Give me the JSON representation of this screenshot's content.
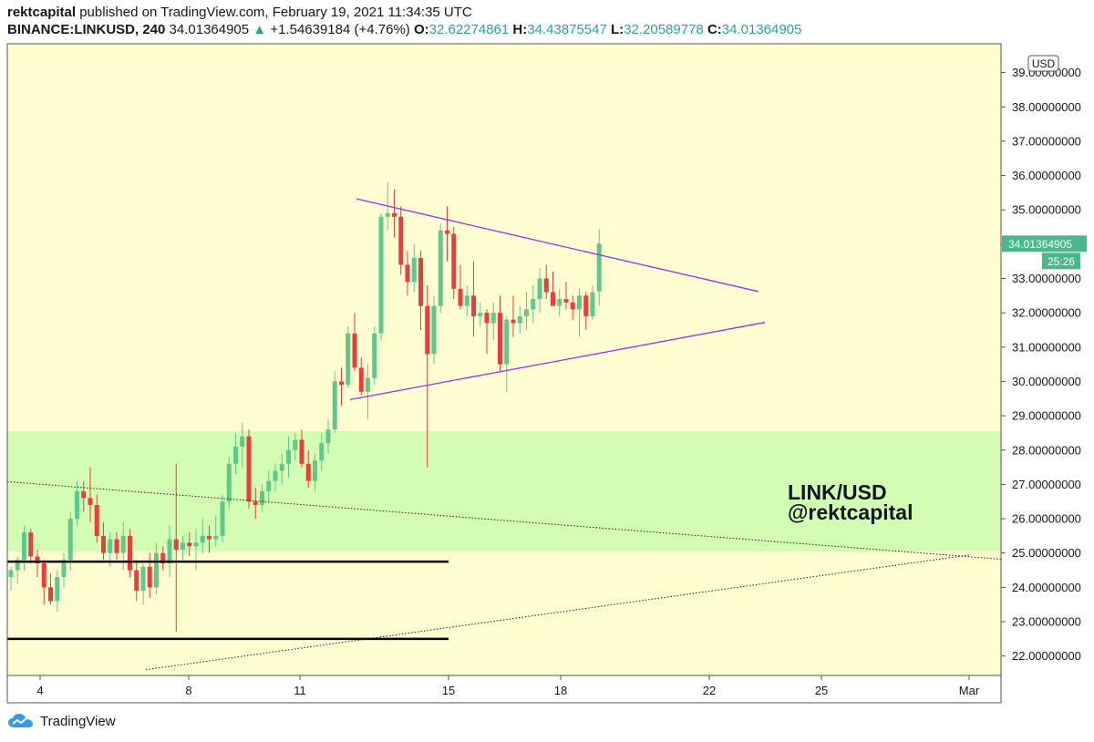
{
  "header": {
    "author": "rektcapital",
    "published_text": "published on TradingView.com, February 19, 2021 11:34:35 UTC",
    "symbol": "BINANCE:LINKUSD, 240",
    "last": "34.01364905",
    "arrow": "▲",
    "change": "+1.54639184 (+4.76%)",
    "o_label": "O:",
    "o_value": "32.62274861",
    "h_label": "H:",
    "h_value": "34.43875547",
    "l_label": "L:",
    "l_value": "32.20589778",
    "c_label": "C:",
    "c_value": "34.01364905"
  },
  "currency_badge": "USD",
  "price_badge": "34.01364905",
  "countdown_badge": "25:26",
  "watermark": {
    "line1": "LINK/USD",
    "line2": "@rektcapital"
  },
  "footer": {
    "brand": "TradingView"
  },
  "colors": {
    "background": "#fffed0",
    "zone": "#d3fdb2",
    "bull": "#5dc98d",
    "bear": "#ef3b3b",
    "triangle": "#9b30ff",
    "badge": "#4cb78a"
  },
  "chart_data": {
    "type": "candlestick",
    "symbol": "BINANCE:LINKUSD",
    "interval": "240",
    "ylim": [
      21.5,
      39.5
    ],
    "y_ticks": [
      "22.00000000",
      "23.00000000",
      "24.00000000",
      "25.00000000",
      "26.00000000",
      "27.00000000",
      "28.00000000",
      "29.00000000",
      "30.00000000",
      "31.00000000",
      "32.00000000",
      "33.00000000",
      "34.00000000",
      "35.00000000",
      "36.00000000",
      "37.00000000",
      "38.00000000",
      "39.00000000"
    ],
    "x_ticks": [
      "4",
      "8",
      "11",
      "15",
      "18",
      "22",
      "25",
      "Mar"
    ],
    "series": [
      {
        "values": [
          [
            24.3,
            24.6,
            23.9,
            24.5
          ],
          [
            24.5,
            24.9,
            24.1,
            24.8
          ],
          [
            24.8,
            25.8,
            24.5,
            25.6
          ],
          [
            25.6,
            25.7,
            24.7,
            24.9
          ],
          [
            24.9,
            25.1,
            24.3,
            24.7
          ],
          [
            24.7,
            24.8,
            23.5,
            24.0
          ],
          [
            24.0,
            24.4,
            23.5,
            23.6
          ],
          [
            23.6,
            24.5,
            23.3,
            24.3
          ],
          [
            24.3,
            25.0,
            24.0,
            24.8
          ],
          [
            24.8,
            26.2,
            24.5,
            26.0
          ],
          [
            26.0,
            27.1,
            25.8,
            26.8
          ],
          [
            26.8,
            27.1,
            26.2,
            26.6
          ],
          [
            26.6,
            27.5,
            25.9,
            26.4
          ],
          [
            26.4,
            26.7,
            25.3,
            25.5
          ],
          [
            25.5,
            25.9,
            24.8,
            25.0
          ],
          [
            25.0,
            25.6,
            24.6,
            25.4
          ],
          [
            25.4,
            25.6,
            24.8,
            25.0
          ],
          [
            25.0,
            25.9,
            24.5,
            25.5
          ],
          [
            25.5,
            25.7,
            24.3,
            24.5
          ],
          [
            24.5,
            24.8,
            23.6,
            23.9
          ],
          [
            23.9,
            24.7,
            23.5,
            24.6
          ],
          [
            24.6,
            25.0,
            23.7,
            24.0
          ],
          [
            24.0,
            25.3,
            23.8,
            25.0
          ],
          [
            25.0,
            25.2,
            24.5,
            24.7
          ],
          [
            24.7,
            25.8,
            24.3,
            25.4
          ],
          [
            25.4,
            27.6,
            22.7,
            25.1
          ],
          [
            25.1,
            25.5,
            24.8,
            25.3
          ],
          [
            25.3,
            25.6,
            24.9,
            25.2
          ],
          [
            25.2,
            25.7,
            24.5,
            25.3
          ],
          [
            25.3,
            26.0,
            25.0,
            25.5
          ],
          [
            25.5,
            25.8,
            25.0,
            25.4
          ],
          [
            25.4,
            26.1,
            25.2,
            25.5
          ],
          [
            25.5,
            26.7,
            25.3,
            26.5
          ],
          [
            26.5,
            27.8,
            26.3,
            27.6
          ],
          [
            27.6,
            28.5,
            27.3,
            28.1
          ],
          [
            28.1,
            28.8,
            27.5,
            28.4
          ],
          [
            28.4,
            28.6,
            26.3,
            26.5
          ],
          [
            26.5,
            26.9,
            26.0,
            26.4
          ],
          [
            26.4,
            27.0,
            26.2,
            26.8
          ],
          [
            26.8,
            27.4,
            26.5,
            27.1
          ],
          [
            27.1,
            27.6,
            26.8,
            27.4
          ],
          [
            27.4,
            27.9,
            27.0,
            27.6
          ],
          [
            27.6,
            28.4,
            27.2,
            28.0
          ],
          [
            28.0,
            28.5,
            27.7,
            28.3
          ],
          [
            28.3,
            28.6,
            27.5,
            27.6
          ],
          [
            27.6,
            28.0,
            26.9,
            27.1
          ],
          [
            27.1,
            27.9,
            26.8,
            27.7
          ],
          [
            27.7,
            28.5,
            27.4,
            28.2
          ],
          [
            28.2,
            28.9,
            27.9,
            28.6
          ],
          [
            28.6,
            30.3,
            28.5,
            30.0
          ],
          [
            30.0,
            30.4,
            29.3,
            29.9
          ],
          [
            29.9,
            31.6,
            29.8,
            31.4
          ],
          [
            31.4,
            32.0,
            30.3,
            30.4
          ],
          [
            30.4,
            30.7,
            29.6,
            29.7
          ],
          [
            29.7,
            30.5,
            28.9,
            30.1
          ],
          [
            30.1,
            31.6,
            29.9,
            31.4
          ],
          [
            31.4,
            34.9,
            31.2,
            34.8
          ],
          [
            34.8,
            35.8,
            34.4,
            34.9
          ],
          [
            34.9,
            35.6,
            34.2,
            34.8
          ],
          [
            34.8,
            35.1,
            33.1,
            33.4
          ],
          [
            33.4,
            33.8,
            32.5,
            32.9
          ],
          [
            32.9,
            34.0,
            32.6,
            33.6
          ],
          [
            33.6,
            33.8,
            31.5,
            32.2
          ],
          [
            32.2,
            32.8,
            27.5,
            30.8
          ],
          [
            30.8,
            32.5,
            30.5,
            32.2
          ],
          [
            32.2,
            34.6,
            32.0,
            34.4
          ],
          [
            34.4,
            35.1,
            33.5,
            34.3
          ],
          [
            34.3,
            34.5,
            32.4,
            32.7
          ],
          [
            32.7,
            33.4,
            32.1,
            32.2
          ],
          [
            32.2,
            32.8,
            31.9,
            32.5
          ],
          [
            32.5,
            33.5,
            31.3,
            31.9
          ],
          [
            31.9,
            32.3,
            31.6,
            32.0
          ],
          [
            32.0,
            32.1,
            30.8,
            31.7
          ],
          [
            31.7,
            32.3,
            31.2,
            32.0
          ],
          [
            32.0,
            32.5,
            30.3,
            30.5
          ],
          [
            30.5,
            31.9,
            29.7,
            31.8
          ],
          [
            31.8,
            32.5,
            31.3,
            31.7
          ],
          [
            31.7,
            32.2,
            31.4,
            31.9
          ],
          [
            31.9,
            32.6,
            31.5,
            32.1
          ],
          [
            32.1,
            32.8,
            31.7,
            32.4
          ],
          [
            32.4,
            33.3,
            32.0,
            33.0
          ],
          [
            33.0,
            33.4,
            32.4,
            32.6
          ],
          [
            32.6,
            33.2,
            32.3,
            32.2
          ],
          [
            32.2,
            32.7,
            31.9,
            32.4
          ],
          [
            32.4,
            32.9,
            32.1,
            32.3
          ],
          [
            32.3,
            32.5,
            31.8,
            32.1
          ],
          [
            32.1,
            32.7,
            31.3,
            32.5
          ],
          [
            32.5,
            32.6,
            31.5,
            31.9
          ],
          [
            31.9,
            32.8,
            31.8,
            32.6
          ],
          [
            32.62274861,
            34.43875547,
            32.20589778,
            34.01364905
          ]
        ]
      }
    ],
    "annotations": {
      "zone": [
        25.05,
        28.55
      ],
      "horizontal_levels": [
        24.75,
        22.5
      ],
      "triangle_upper": [
        [
          0.495,
          35.32
        ],
        [
          1.0,
          32.62
        ]
      ],
      "triangle_lower": [
        [
          0.475,
          29.47
        ],
        [
          1.03,
          31.72
        ]
      ]
    }
  }
}
